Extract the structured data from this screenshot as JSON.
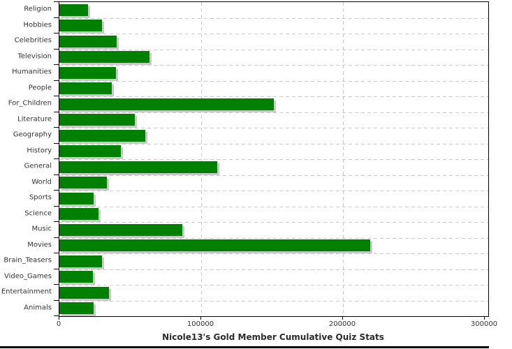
{
  "chart_data": {
    "type": "bar",
    "orientation": "horizontal",
    "title": "Nicole13's Gold Member Cumulative Quiz Stats",
    "categories": [
      "Religion",
      "Hobbies",
      "Celebrities",
      "Television",
      "Humanities",
      "People",
      "For_Children",
      "Literature",
      "Geography",
      "History",
      "General",
      "World",
      "Sports",
      "Science",
      "Music",
      "Movies",
      "Brain_Teasers",
      "Video_Games",
      "Entertainment",
      "Animals"
    ],
    "values": [
      20000,
      30000,
      40500,
      63500,
      40000,
      37000,
      151000,
      53000,
      60500,
      43500,
      111500,
      33500,
      24000,
      27500,
      86500,
      219000,
      30000,
      23500,
      35000,
      24000
    ],
    "xlabel": "",
    "ylabel": "",
    "xlim": [
      0,
      300000
    ],
    "x_ticks": [
      0,
      100000,
      200000,
      300000
    ],
    "x_tick_labels": [
      "0",
      "100000",
      "200000",
      "300000"
    ],
    "grid": "dashed",
    "legend": "none"
  },
  "colors": {
    "bar": "#008000",
    "bar_shadow": "#c9c9c9",
    "grid": "#cccccc",
    "axis": "#000000",
    "text": "#333333",
    "background": "#ffffff",
    "bottom_border": "#000000"
  }
}
